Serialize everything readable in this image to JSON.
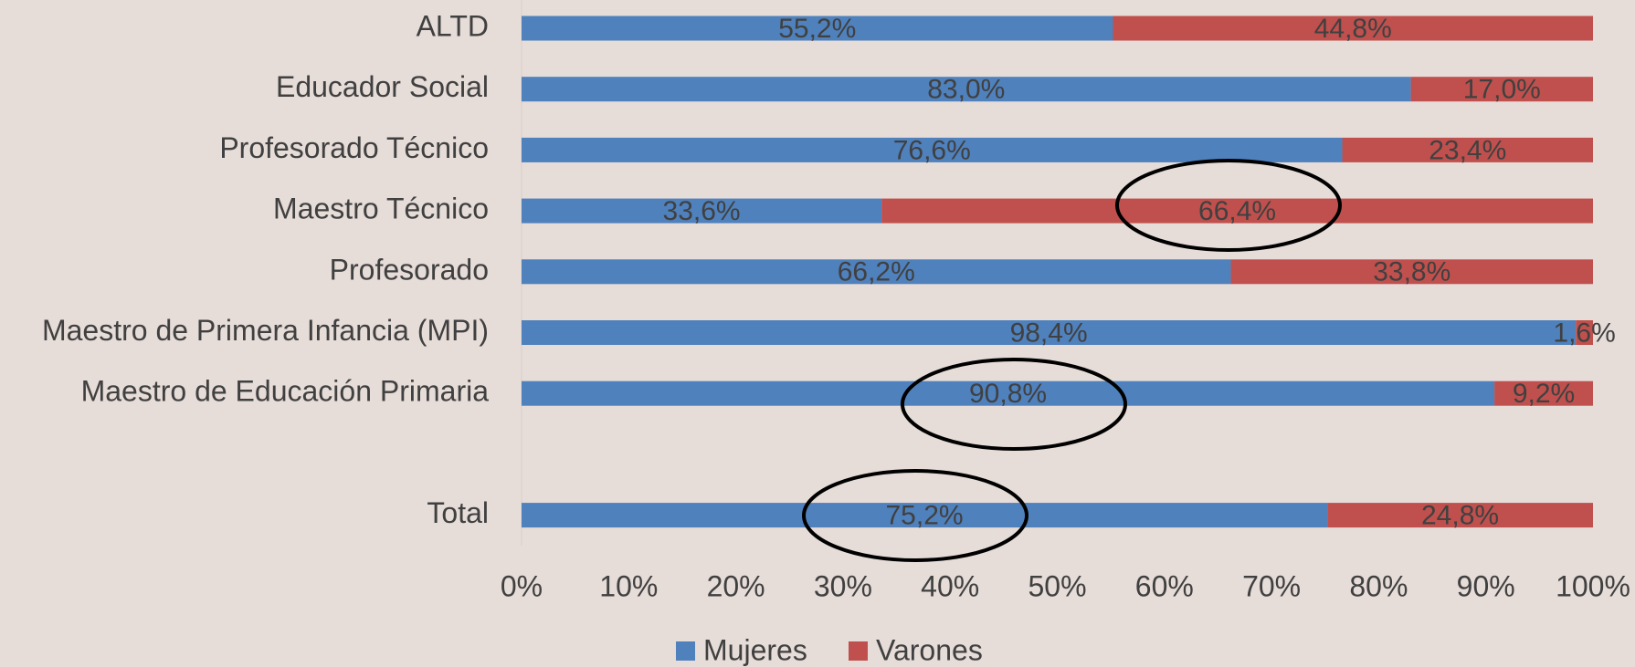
{
  "chart_data": {
    "type": "stacked_barh",
    "categories": [
      "ALTD",
      "Educador Social",
      "Profesorado Técnico",
      "Maestro Técnico",
      "Profesorado",
      "Maestro de Primera Infancia (MPI)",
      "Maestro de Educación Primaria",
      null,
      "Total"
    ],
    "series": [
      {
        "name": "Mujeres",
        "color": "#4f81bd",
        "values": [
          55.2,
          83.0,
          76.6,
          33.6,
          66.2,
          98.4,
          90.8,
          null,
          75.2
        ],
        "value_labels": [
          "55,2%",
          "83,0%",
          "76,6%",
          "33,6%",
          "66,2%",
          "98,4%",
          "90,8%",
          null,
          "75,2%"
        ]
      },
      {
        "name": "Varones",
        "color": "#c0504d",
        "values": [
          44.8,
          17.0,
          23.4,
          66.4,
          33.8,
          1.6,
          9.2,
          null,
          24.8
        ],
        "value_labels": [
          "44,8%",
          "17,0%",
          "23,4%",
          "66,4%",
          "33,8%",
          "1,6%",
          "9,2%",
          null,
          "24,8%"
        ]
      }
    ],
    "xlim": [
      0,
      100
    ],
    "xticks": [
      {
        "value": 0,
        "label": "0%"
      },
      {
        "value": 10,
        "label": "10%"
      },
      {
        "value": 20,
        "label": "20%"
      },
      {
        "value": 30,
        "label": "30%"
      },
      {
        "value": 40,
        "label": "40%"
      },
      {
        "value": 50,
        "label": "50%"
      },
      {
        "value": 60,
        "label": "60%"
      },
      {
        "value": 70,
        "label": "70%"
      },
      {
        "value": 80,
        "label": "80%"
      },
      {
        "value": 90,
        "label": "90%"
      },
      {
        "value": 100,
        "label": "100%"
      }
    ],
    "legend": "bottom"
  }
}
